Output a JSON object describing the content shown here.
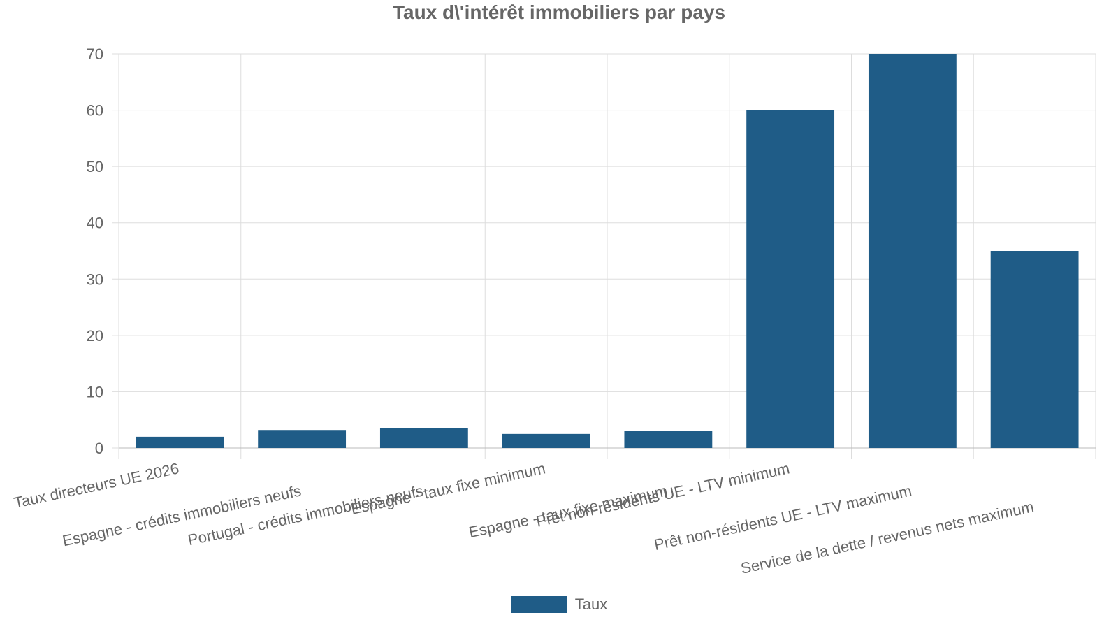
{
  "chart_data": {
    "type": "bar",
    "title": "Taux d\\'intérêt immobiliers par pays",
    "categories": [
      "Taux directeurs UE 2026",
      "Espagne - crédits immobiliers neufs",
      "Portugal - crédits immobiliers neufs",
      "Espagne - taux fixe minimum",
      "Espagne - taux fixe maximum",
      "Prêt non-résidents UE - LTV minimum",
      "Prêt non-résidents UE - LTV maximum",
      "Service de la dette / revenus nets maximum"
    ],
    "series": [
      {
        "name": "Taux",
        "color": "#1f5c87",
        "values": [
          2,
          3.2,
          3.5,
          2.5,
          3,
          60,
          70,
          35
        ]
      }
    ],
    "ylim": [
      0,
      70
    ],
    "yticks": [
      0,
      10,
      20,
      30,
      40,
      50,
      60,
      70
    ],
    "grid": true,
    "legend_position": "bottom-center"
  }
}
